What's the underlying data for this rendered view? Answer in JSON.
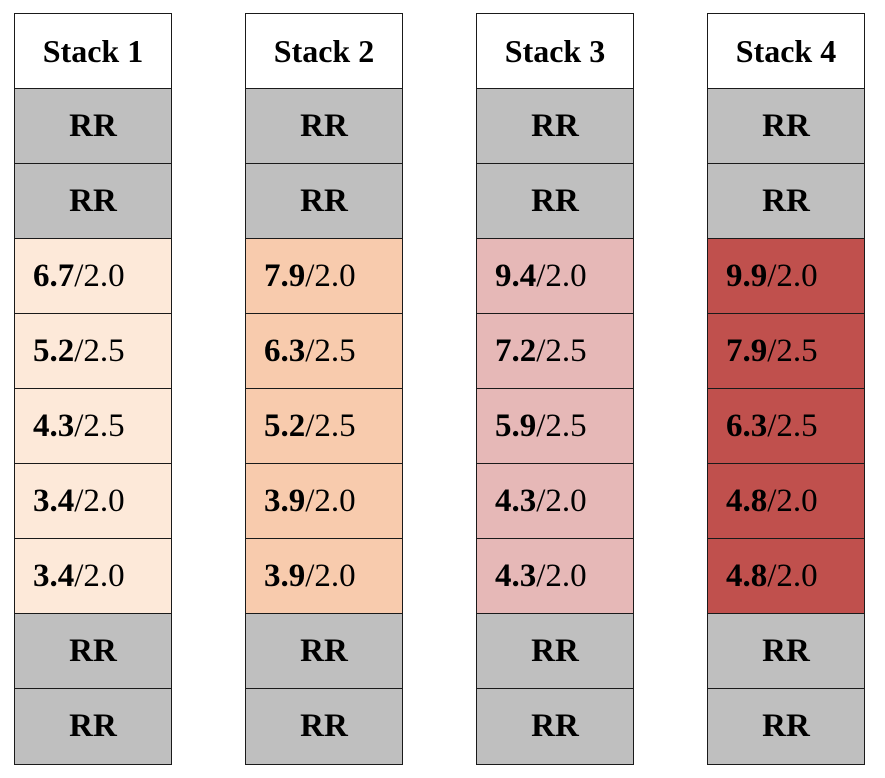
{
  "colors": {
    "rr_fill": "#bfbfbf",
    "border": "#1a1a1a"
  },
  "stacks": [
    {
      "title": "Stack 1",
      "fill": "#fde9d9",
      "cells": [
        {
          "kind": "rr",
          "text": "RR"
        },
        {
          "kind": "rr",
          "text": "RR"
        },
        {
          "kind": "val",
          "main": "6.7",
          "sub": "2.0"
        },
        {
          "kind": "val",
          "main": "5.2",
          "sub": "2.5"
        },
        {
          "kind": "val",
          "main": "4.3",
          "sub": "2.5"
        },
        {
          "kind": "val",
          "main": "3.4",
          "sub": "2.0"
        },
        {
          "kind": "val",
          "main": "3.4",
          "sub": "2.0"
        },
        {
          "kind": "rr",
          "text": "RR"
        },
        {
          "kind": "rr",
          "text": "RR"
        }
      ]
    },
    {
      "title": "Stack 2",
      "fill": "#f8cbad",
      "cells": [
        {
          "kind": "rr",
          "text": "RR"
        },
        {
          "kind": "rr",
          "text": "RR"
        },
        {
          "kind": "val",
          "main": "7.9",
          "sub": "2.0"
        },
        {
          "kind": "val",
          "main": "6.3",
          "sub": "2.5"
        },
        {
          "kind": "val",
          "main": "5.2",
          "sub": "2.5"
        },
        {
          "kind": "val",
          "main": "3.9",
          "sub": "2.0"
        },
        {
          "kind": "val",
          "main": "3.9",
          "sub": "2.0"
        },
        {
          "kind": "rr",
          "text": "RR"
        },
        {
          "kind": "rr",
          "text": "RR"
        }
      ]
    },
    {
      "title": "Stack 3",
      "fill": "#e6b8b7",
      "cells": [
        {
          "kind": "rr",
          "text": "RR"
        },
        {
          "kind": "rr",
          "text": "RR"
        },
        {
          "kind": "val",
          "main": "9.4",
          "sub": "2.0"
        },
        {
          "kind": "val",
          "main": "7.2",
          "sub": "2.5"
        },
        {
          "kind": "val",
          "main": "5.9",
          "sub": "2.5"
        },
        {
          "kind": "val",
          "main": "4.3",
          "sub": "2.0"
        },
        {
          "kind": "val",
          "main": "4.3",
          "sub": "2.0"
        },
        {
          "kind": "rr",
          "text": "RR"
        },
        {
          "kind": "rr",
          "text": "RR"
        }
      ]
    },
    {
      "title": "Stack 4",
      "fill": "#c0504d",
      "cells": [
        {
          "kind": "rr",
          "text": "RR"
        },
        {
          "kind": "rr",
          "text": "RR"
        },
        {
          "kind": "val",
          "main": "9.9",
          "sub": "2.0"
        },
        {
          "kind": "val",
          "main": "7.9",
          "sub": "2.5"
        },
        {
          "kind": "val",
          "main": "6.3",
          "sub": "2.5"
        },
        {
          "kind": "val",
          "main": "4.8",
          "sub": "2.0"
        },
        {
          "kind": "val",
          "main": "4.8",
          "sub": "2.0"
        },
        {
          "kind": "rr",
          "text": "RR"
        },
        {
          "kind": "rr",
          "text": "RR"
        }
      ]
    }
  ]
}
